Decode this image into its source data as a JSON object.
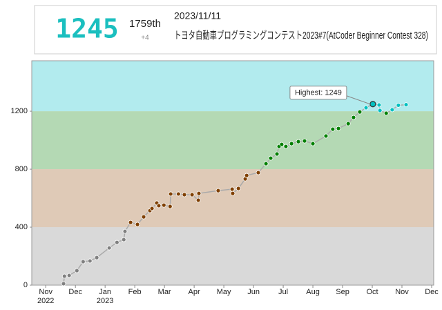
{
  "header": {
    "rating": "1245",
    "rank": "1759th",
    "diff": "+4",
    "date": "2023/11/11",
    "contest": "トヨタ自動車プログラミングコンテスト2023#7(AtCoder Beginner Contest 328)"
  },
  "chart_data": {
    "type": "line",
    "x": [
      0.6,
      0.63,
      0.79,
      1.05,
      1.26,
      1.49,
      1.72,
      2.14,
      2.4,
      2.63,
      2.67,
      2.86,
      3.09,
      3.3,
      3.51,
      3.58,
      3.74,
      3.81,
      3.98,
      4.19,
      4.21,
      4.47,
      4.67,
      4.93,
      5.14,
      5.16,
      5.81,
      6.28,
      6.3,
      6.49,
      6.72,
      6.77,
      7.16,
      7.42,
      7.58,
      7.79,
      7.86,
      7.95,
      8.09,
      8.28,
      8.51,
      8.72,
      9.0,
      9.44,
      9.67,
      9.86,
      10.19,
      10.37,
      10.58,
      10.79,
      11.02,
      11.23,
      11.26,
      11.47,
      11.67,
      11.88,
      12.14
    ],
    "values": [
      10,
      62,
      67,
      100,
      162,
      167,
      190,
      257,
      295,
      314,
      371,
      433,
      419,
      471,
      514,
      529,
      567,
      548,
      552,
      543,
      629,
      629,
      624,
      624,
      586,
      633,
      652,
      662,
      633,
      667,
      733,
      757,
      776,
      838,
      876,
      905,
      957,
      971,
      957,
      976,
      990,
      995,
      976,
      1029,
      1076,
      1081,
      1114,
      1157,
      1195,
      1224,
      1249,
      1243,
      1205,
      1186,
      1210,
      1241,
      1245
    ],
    "line_color": "#aaaaaa",
    "xlim": [
      -0.47,
      13.07
    ],
    "ylim": [
      0,
      1548
    ],
    "xticks": [
      {
        "value": 0,
        "label": "Nov"
      },
      {
        "value": 1,
        "label": "Dec"
      },
      {
        "value": 2,
        "label": "Jan"
      },
      {
        "value": 3,
        "label": "Feb"
      },
      {
        "value": 4,
        "label": "Mar"
      },
      {
        "value": 5,
        "label": "Apr"
      },
      {
        "value": 6,
        "label": "May"
      },
      {
        "value": 7,
        "label": "Jun"
      },
      {
        "value": 8,
        "label": "Jul"
      },
      {
        "value": 9,
        "label": "Aug"
      },
      {
        "value": 10,
        "label": "Sep"
      },
      {
        "value": 11,
        "label": "Oct"
      },
      {
        "value": 12,
        "label": "Nov"
      },
      {
        "value": 13,
        "label": "Dec"
      }
    ],
    "x_year_labels": [
      {
        "value": 0,
        "label": "2022"
      },
      {
        "value": 2,
        "label": "2023"
      }
    ],
    "yticks": [
      0,
      400,
      800,
      1200
    ],
    "bands": [
      {
        "from": 0,
        "to": 400,
        "color": "#d9d9d9",
        "point_color": "#808080"
      },
      {
        "from": 400,
        "to": 800,
        "color": "#dfcab7",
        "point_color": "#804000"
      },
      {
        "from": 800,
        "to": 1200,
        "color": "#b4d9b4",
        "point_color": "#008000"
      },
      {
        "from": 1200,
        "to": 1548,
        "color": "#b2ebee",
        "point_color": "#00c0c0"
      }
    ],
    "annotation": "Highest: 1249"
  }
}
